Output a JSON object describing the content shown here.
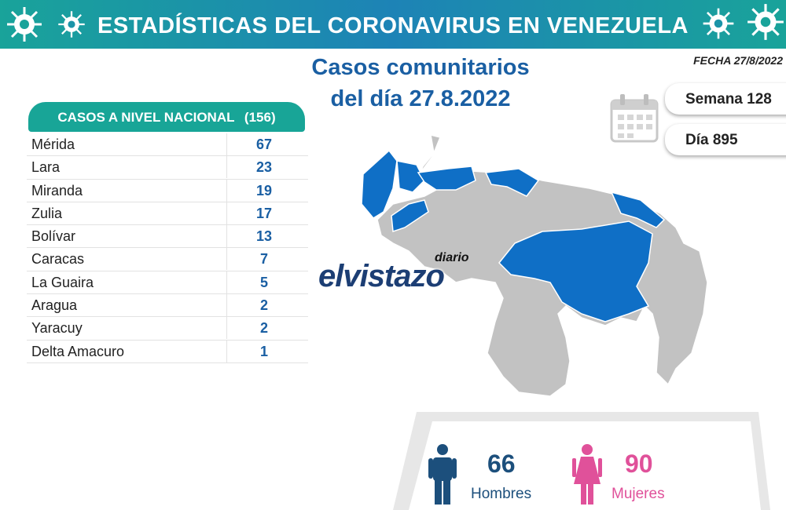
{
  "header": {
    "title": "ESTADÍSTICAS DEL CORONAVIRUS EN VENEZUELA"
  },
  "title": {
    "line1": "Casos comunitarios",
    "line2": "del día 27.8.2022"
  },
  "date_label": "FECHA 27/8/2022",
  "table": {
    "heading": "CASOS A NIVEL NACIONAL",
    "total": "(156)",
    "rows": [
      {
        "name": "Mérida",
        "value": "67"
      },
      {
        "name": "Lara",
        "value": "23"
      },
      {
        "name": "Miranda",
        "value": "19"
      },
      {
        "name": "Zulia",
        "value": "17"
      },
      {
        "name": "Bolívar",
        "value": "13"
      },
      {
        "name": "Caracas",
        "value": "7"
      },
      {
        "name": "La Guaira",
        "value": "5"
      },
      {
        "name": "Aragua",
        "value": "2"
      },
      {
        "name": "Yaracuy",
        "value": "2"
      },
      {
        "name": "Delta Amacuro",
        "value": "1"
      }
    ]
  },
  "week": "Semana 128",
  "day": "Día 895",
  "logo": {
    "prefix": "diario",
    "name": "elvistazo"
  },
  "gender": {
    "men": {
      "count": "66",
      "label": "Hombres"
    },
    "women": {
      "count": "90",
      "label": "Mujeres"
    }
  },
  "colors": {
    "header_teal": "#19a39a",
    "header_blue": "#1d83b6",
    "accent_blue": "#1a5fa3",
    "table_head": "#18a597",
    "map_highlight": "#0f6fc6",
    "map_gray": "#c2c2c2",
    "men": "#1c4f7c",
    "women": "#e0519a"
  },
  "icons": [
    "virus-icon",
    "calendar-icon",
    "man-icon",
    "woman-icon"
  ]
}
